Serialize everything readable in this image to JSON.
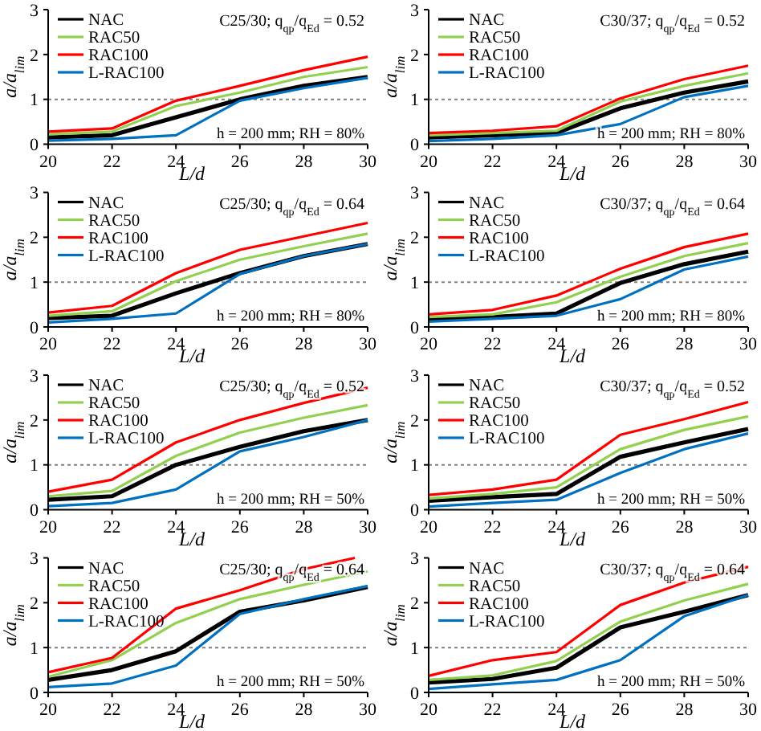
{
  "chart_data": [
    {
      "type": "line",
      "xlabel": "L/d",
      "ylabel": "a/a$_{lim}$",
      "x": [
        20,
        22,
        24,
        26,
        28,
        30
      ],
      "xlim": [
        20,
        30
      ],
      "xticks": [
        20,
        22,
        24,
        26,
        28,
        30
      ],
      "ylim": [
        0,
        3
      ],
      "yticks": [
        0,
        1,
        2,
        3
      ],
      "legend": "top left",
      "ref_lines": [
        {
          "axis": "y",
          "value": 1,
          "color": "#808080",
          "line_style": "dotted"
        }
      ],
      "annotations": [
        "C25/30; q$_{qp}$/q$_{Ed}$ = 0.52",
        "h = 200 mm; RH = 80%"
      ],
      "series": [
        {
          "name": "NAC",
          "color": "#000000",
          "values": [
            0.15,
            0.2,
            0.6,
            1.0,
            1.3,
            1.5
          ]
        },
        {
          "name": "RAC50",
          "color": "#92d050",
          "values": [
            0.22,
            0.28,
            0.85,
            1.15,
            1.5,
            1.72
          ]
        },
        {
          "name": "RAC100",
          "color": "#ff0000",
          "values": [
            0.28,
            0.35,
            0.97,
            1.3,
            1.65,
            1.95
          ]
        },
        {
          "name": "L-RAC100",
          "color": "#0070c0",
          "values": [
            0.08,
            0.12,
            0.2,
            0.97,
            1.25,
            1.48
          ]
        }
      ]
    },
    {
      "type": "line",
      "xlabel": "L/d",
      "ylabel": "a/a$_{lim}$",
      "x": [
        20,
        22,
        24,
        26,
        28,
        30
      ],
      "xlim": [
        20,
        30
      ],
      "xticks": [
        20,
        22,
        24,
        26,
        28,
        30
      ],
      "ylim": [
        0,
        3
      ],
      "yticks": [
        0,
        1,
        2,
        3
      ],
      "legend": "top left",
      "ref_lines": [
        {
          "axis": "y",
          "value": 1,
          "color": "#808080",
          "line_style": "dotted"
        }
      ],
      "annotations": [
        "C30/37; q$_{qp}$/q$_{Ed}$ = 0.52",
        "h = 200 mm; RH = 80%"
      ],
      "series": [
        {
          "name": "NAC",
          "color": "#000000",
          "values": [
            0.15,
            0.2,
            0.25,
            0.8,
            1.15,
            1.4
          ]
        },
        {
          "name": "RAC50",
          "color": "#92d050",
          "values": [
            0.2,
            0.25,
            0.3,
            0.95,
            1.3,
            1.58
          ]
        },
        {
          "name": "RAC100",
          "color": "#ff0000",
          "values": [
            0.25,
            0.3,
            0.4,
            1.02,
            1.45,
            1.75
          ]
        },
        {
          "name": "L-RAC100",
          "color": "#0070c0",
          "values": [
            0.07,
            0.12,
            0.2,
            0.45,
            1.05,
            1.3
          ]
        }
      ]
    },
    {
      "type": "line",
      "xlabel": "L/d",
      "ylabel": "a/a$_{lim}$",
      "x": [
        20,
        22,
        24,
        26,
        28,
        30
      ],
      "xlim": [
        20,
        30
      ],
      "xticks": [
        20,
        22,
        24,
        26,
        28,
        30
      ],
      "ylim": [
        0,
        3
      ],
      "yticks": [
        0,
        1,
        2,
        3
      ],
      "legend": "top left",
      "ref_lines": [
        {
          "axis": "y",
          "value": 1,
          "color": "#808080",
          "line_style": "dotted"
        }
      ],
      "annotations": [
        "C25/30; q$_{qp}$/q$_{Ed}$ = 0.64",
        "h = 200 mm; RH = 80%"
      ],
      "series": [
        {
          "name": "NAC",
          "color": "#000000",
          "values": [
            0.2,
            0.25,
            0.75,
            1.2,
            1.58,
            1.85
          ]
        },
        {
          "name": "RAC50",
          "color": "#92d050",
          "values": [
            0.25,
            0.35,
            1.02,
            1.5,
            1.8,
            2.08
          ]
        },
        {
          "name": "RAC100",
          "color": "#ff0000",
          "values": [
            0.32,
            0.47,
            1.2,
            1.72,
            2.02,
            2.32
          ]
        },
        {
          "name": "L-RAC100",
          "color": "#0070c0",
          "values": [
            0.1,
            0.18,
            0.3,
            1.18,
            1.58,
            1.85
          ]
        }
      ]
    },
    {
      "type": "line",
      "xlabel": "L/d",
      "ylabel": "a/a$_{lim}$",
      "x": [
        20,
        22,
        24,
        26,
        28,
        30
      ],
      "xlim": [
        20,
        30
      ],
      "xticks": [
        20,
        22,
        24,
        26,
        28,
        30
      ],
      "ylim": [
        0,
        3
      ],
      "yticks": [
        0,
        1,
        2,
        3
      ],
      "legend": "top left",
      "ref_lines": [
        {
          "axis": "y",
          "value": 1,
          "color": "#808080",
          "line_style": "dotted"
        }
      ],
      "annotations": [
        "C30/37; q$_{qp}$/q$_{Ed}$ = 0.64",
        "h = 200 mm; RH = 80%"
      ],
      "series": [
        {
          "name": "NAC",
          "color": "#000000",
          "values": [
            0.17,
            0.22,
            0.3,
            0.98,
            1.4,
            1.68
          ]
        },
        {
          "name": "RAC50",
          "color": "#92d050",
          "values": [
            0.22,
            0.28,
            0.55,
            1.12,
            1.58,
            1.87
          ]
        },
        {
          "name": "RAC100",
          "color": "#ff0000",
          "values": [
            0.28,
            0.38,
            0.7,
            1.3,
            1.78,
            2.08
          ]
        },
        {
          "name": "L-RAC100",
          "color": "#0070c0",
          "values": [
            0.12,
            0.18,
            0.25,
            0.62,
            1.28,
            1.57
          ]
        }
      ]
    },
    {
      "type": "line",
      "xlabel": "L/d",
      "ylabel": "a/a$_{lim}$",
      "x": [
        20,
        22,
        24,
        26,
        28,
        30
      ],
      "xlim": [
        20,
        30
      ],
      "xticks": [
        20,
        22,
        24,
        26,
        28,
        30
      ],
      "ylim": [
        0,
        3
      ],
      "yticks": [
        0,
        1,
        2,
        3
      ],
      "legend": "top left",
      "ref_lines": [
        {
          "axis": "y",
          "value": 1,
          "color": "#808080",
          "line_style": "dotted"
        }
      ],
      "annotations": [
        "C25/30; q$_{qp}$/q$_{Ed}$ = 0.52",
        "h = 200 mm; RH = 50%"
      ],
      "series": [
        {
          "name": "NAC",
          "color": "#000000",
          "values": [
            0.22,
            0.3,
            1.0,
            1.4,
            1.75,
            2.0
          ]
        },
        {
          "name": "RAC50",
          "color": "#92d050",
          "values": [
            0.3,
            0.42,
            1.2,
            1.72,
            2.05,
            2.33
          ]
        },
        {
          "name": "RAC100",
          "color": "#ff0000",
          "values": [
            0.4,
            0.67,
            1.5,
            2.0,
            2.38,
            2.72
          ]
        },
        {
          "name": "L-RAC100",
          "color": "#0070c0",
          "values": [
            0.08,
            0.15,
            0.45,
            1.3,
            1.62,
            2.0
          ]
        }
      ]
    },
    {
      "type": "line",
      "xlabel": "L/d",
      "ylabel": "a/a$_{lim}$",
      "x": [
        20,
        22,
        24,
        26,
        28,
        30
      ],
      "xlim": [
        20,
        30
      ],
      "xticks": [
        20,
        22,
        24,
        26,
        28,
        30
      ],
      "ylim": [
        0,
        3
      ],
      "yticks": [
        0,
        1,
        2,
        3
      ],
      "legend": "top left",
      "ref_lines": [
        {
          "axis": "y",
          "value": 1,
          "color": "#808080",
          "line_style": "dotted"
        }
      ],
      "annotations": [
        "C30/37; q$_{qp}$/q$_{Ed}$ = 0.52",
        "h = 200 mm; RH = 50%"
      ],
      "series": [
        {
          "name": "NAC",
          "color": "#000000",
          "values": [
            0.2,
            0.28,
            0.35,
            1.18,
            1.5,
            1.8
          ]
        },
        {
          "name": "RAC50",
          "color": "#92d050",
          "values": [
            0.25,
            0.35,
            0.5,
            1.35,
            1.78,
            2.08
          ]
        },
        {
          "name": "RAC100",
          "color": "#ff0000",
          "values": [
            0.33,
            0.45,
            0.67,
            1.67,
            2.02,
            2.4
          ]
        },
        {
          "name": "L-RAC100",
          "color": "#0070c0",
          "values": [
            0.07,
            0.15,
            0.22,
            0.82,
            1.35,
            1.7
          ]
        }
      ]
    },
    {
      "type": "line",
      "xlabel": "L/d",
      "ylabel": "a/a$_{lim}$",
      "x": [
        20,
        22,
        24,
        26,
        28,
        30
      ],
      "xlim": [
        20,
        30
      ],
      "xticks": [
        20,
        22,
        24,
        26,
        28,
        30
      ],
      "ylim": [
        0,
        3
      ],
      "yticks": [
        0,
        1,
        2,
        3
      ],
      "legend": "top left",
      "ref_lines": [
        {
          "axis": "y",
          "value": 1,
          "color": "#808080",
          "line_style": "dotted"
        }
      ],
      "annotations": [
        "C25/30; q$_{qp}$/q$_{Ed}$ = 0.64",
        "h = 200 mm; RH = 50%"
      ],
      "series": [
        {
          "name": "NAC",
          "color": "#000000",
          "values": [
            0.28,
            0.5,
            0.92,
            1.8,
            2.05,
            2.35
          ]
        },
        {
          "name": "RAC50",
          "color": "#92d050",
          "values": [
            0.35,
            0.72,
            1.55,
            2.08,
            2.4,
            2.7
          ]
        },
        {
          "name": "RAC100",
          "color": "#ff0000",
          "x": [
            20,
            22,
            24,
            26,
            28,
            29.6
          ],
          "values": [
            0.45,
            0.77,
            1.87,
            2.28,
            2.75,
            3
          ]
        },
        {
          "name": "L-RAC100",
          "color": "#0070c0",
          "values": [
            0.12,
            0.2,
            0.6,
            1.75,
            2.08,
            2.37
          ]
        }
      ]
    },
    {
      "type": "line",
      "xlabel": "L/d",
      "ylabel": "a/a$_{lim}$",
      "x": [
        20,
        22,
        24,
        26,
        28,
        30
      ],
      "xlim": [
        20,
        30
      ],
      "xticks": [
        20,
        22,
        24,
        26,
        28,
        30
      ],
      "ylim": [
        0,
        3
      ],
      "yticks": [
        0,
        1,
        2,
        3
      ],
      "legend": "top left",
      "ref_lines": [
        {
          "axis": "y",
          "value": 1,
          "color": "#808080",
          "line_style": "dotted"
        }
      ],
      "annotations": [
        "C30/37; q$_{qp}$/q$_{Ed}$ = 0.64",
        "h = 200 mm; RH = 50%"
      ],
      "series": [
        {
          "name": "NAC",
          "color": "#000000",
          "values": [
            0.22,
            0.3,
            0.55,
            1.45,
            1.8,
            2.17
          ]
        },
        {
          "name": "RAC50",
          "color": "#92d050",
          "values": [
            0.28,
            0.38,
            0.7,
            1.58,
            2.05,
            2.42
          ]
        },
        {
          "name": "RAC100",
          "color": "#ff0000",
          "values": [
            0.37,
            0.72,
            0.9,
            1.95,
            2.45,
            2.8
          ]
        },
        {
          "name": "L-RAC100",
          "color": "#0070c0",
          "values": [
            0.08,
            0.18,
            0.28,
            0.72,
            1.7,
            2.17
          ]
        }
      ]
    }
  ]
}
